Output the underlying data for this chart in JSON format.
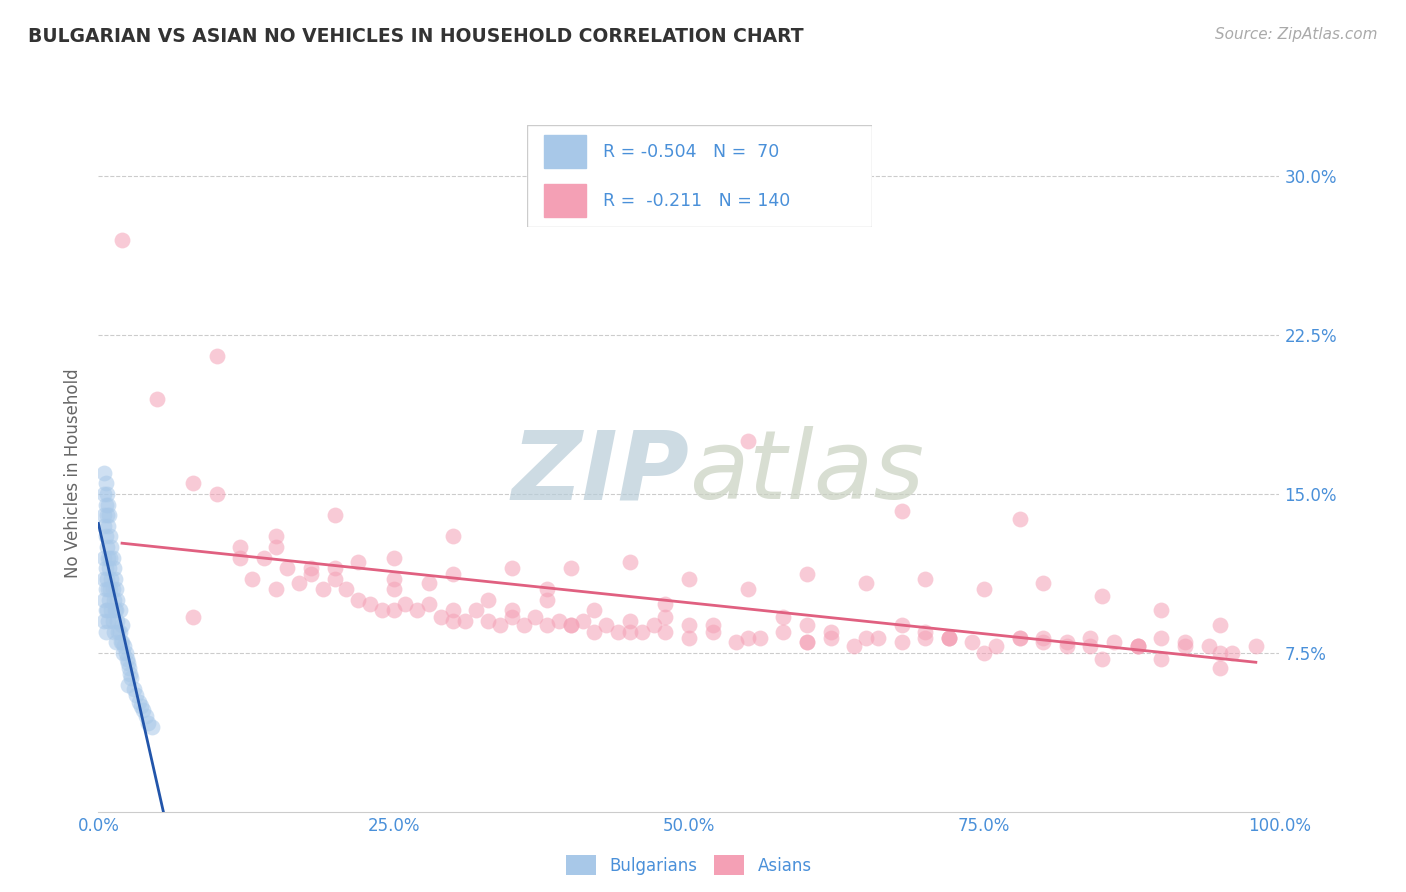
{
  "title": "BULGARIAN VS ASIAN NO VEHICLES IN HOUSEHOLD CORRELATION CHART",
  "source": "Source: ZipAtlas.com",
  "ylabel": "No Vehicles in Household",
  "xlim": [
    0,
    1.0
  ],
  "ylim": [
    0,
    0.32
  ],
  "xticks": [
    0.0,
    0.25,
    0.5,
    0.75,
    1.0
  ],
  "xticklabels": [
    "0.0%",
    "25.0%",
    "50.0%",
    "75.0%",
    "100.0%"
  ],
  "yticks": [
    0.0,
    0.075,
    0.15,
    0.225,
    0.3
  ],
  "yticklabels_right": [
    "",
    "7.5%",
    "15.0%",
    "22.5%",
    "30.0%"
  ],
  "color_bulgarian": "#a8c8e8",
  "color_asian": "#f4a0b5",
  "color_title": "#333333",
  "color_source": "#999999",
  "color_axis_label": "#666666",
  "color_tick_blue": "#4a90d9",
  "color_grid": "#cccccc",
  "watermark_zip": "ZIP",
  "watermark_atlas": "atlas",
  "watermark_color": "#d0dce8",
  "scatter_alpha": 0.55,
  "scatter_size": 130,
  "bulg_line_color": "#2255aa",
  "asian_line_color": "#e06080",
  "bulgarian_scatter_x": [
    0.005,
    0.005,
    0.005,
    0.005,
    0.005,
    0.006,
    0.006,
    0.006,
    0.006,
    0.006,
    0.007,
    0.007,
    0.007,
    0.008,
    0.008,
    0.008,
    0.009,
    0.009,
    0.01,
    0.01,
    0.011,
    0.011,
    0.012,
    0.012,
    0.013,
    0.013,
    0.014,
    0.015,
    0.015,
    0.016,
    0.017,
    0.018,
    0.019,
    0.02,
    0.021,
    0.022,
    0.023,
    0.024,
    0.025,
    0.026,
    0.027,
    0.028,
    0.03,
    0.032,
    0.034,
    0.036,
    0.038,
    0.04,
    0.042,
    0.045,
    0.005,
    0.005,
    0.005,
    0.006,
    0.006,
    0.007,
    0.007,
    0.008,
    0.008,
    0.009,
    0.01,
    0.011,
    0.012,
    0.013,
    0.014,
    0.015,
    0.016,
    0.018,
    0.02,
    0.025
  ],
  "bulgarian_scatter_y": [
    0.135,
    0.12,
    0.11,
    0.1,
    0.09,
    0.13,
    0.115,
    0.105,
    0.095,
    0.085,
    0.125,
    0.11,
    0.095,
    0.12,
    0.105,
    0.09,
    0.115,
    0.1,
    0.12,
    0.105,
    0.11,
    0.095,
    0.105,
    0.09,
    0.1,
    0.085,
    0.095,
    0.095,
    0.08,
    0.09,
    0.085,
    0.085,
    0.08,
    0.08,
    0.075,
    0.078,
    0.075,
    0.072,
    0.07,
    0.068,
    0.065,
    0.063,
    0.058,
    0.055,
    0.052,
    0.05,
    0.048,
    0.045,
    0.042,
    0.04,
    0.16,
    0.15,
    0.14,
    0.155,
    0.145,
    0.15,
    0.14,
    0.145,
    0.135,
    0.14,
    0.13,
    0.125,
    0.12,
    0.115,
    0.11,
    0.105,
    0.1,
    0.095,
    0.088,
    0.06
  ],
  "asian_scatter_x": [
    0.02,
    0.05,
    0.08,
    0.1,
    0.12,
    0.13,
    0.14,
    0.15,
    0.16,
    0.17,
    0.18,
    0.19,
    0.2,
    0.21,
    0.22,
    0.23,
    0.24,
    0.25,
    0.26,
    0.27,
    0.28,
    0.29,
    0.3,
    0.31,
    0.32,
    0.33,
    0.34,
    0.35,
    0.36,
    0.37,
    0.38,
    0.39,
    0.4,
    0.41,
    0.42,
    0.43,
    0.44,
    0.45,
    0.46,
    0.47,
    0.48,
    0.5,
    0.52,
    0.54,
    0.56,
    0.58,
    0.6,
    0.62,
    0.64,
    0.66,
    0.68,
    0.7,
    0.72,
    0.74,
    0.76,
    0.78,
    0.8,
    0.82,
    0.84,
    0.86,
    0.88,
    0.9,
    0.92,
    0.94,
    0.96,
    0.98,
    0.1,
    0.15,
    0.2,
    0.25,
    0.3,
    0.35,
    0.4,
    0.45,
    0.5,
    0.55,
    0.6,
    0.65,
    0.7,
    0.75,
    0.8,
    0.85,
    0.9,
    0.95,
    0.12,
    0.18,
    0.25,
    0.33,
    0.42,
    0.52,
    0.62,
    0.72,
    0.82,
    0.92,
    0.15,
    0.22,
    0.3,
    0.38,
    0.48,
    0.58,
    0.68,
    0.78,
    0.88,
    0.2,
    0.28,
    0.38,
    0.48,
    0.6,
    0.72,
    0.84,
    0.35,
    0.5,
    0.65,
    0.8,
    0.95,
    0.25,
    0.4,
    0.55,
    0.7,
    0.85,
    0.3,
    0.45,
    0.6,
    0.75,
    0.9,
    0.08,
    0.55,
    0.68,
    0.78,
    0.88,
    0.95
  ],
  "asian_scatter_y": [
    0.27,
    0.195,
    0.155,
    0.215,
    0.125,
    0.11,
    0.12,
    0.105,
    0.115,
    0.108,
    0.112,
    0.105,
    0.11,
    0.105,
    0.1,
    0.098,
    0.095,
    0.105,
    0.098,
    0.095,
    0.098,
    0.092,
    0.095,
    0.09,
    0.095,
    0.09,
    0.088,
    0.092,
    0.088,
    0.092,
    0.088,
    0.09,
    0.088,
    0.09,
    0.085,
    0.088,
    0.085,
    0.09,
    0.085,
    0.088,
    0.085,
    0.082,
    0.085,
    0.08,
    0.082,
    0.085,
    0.08,
    0.082,
    0.078,
    0.082,
    0.08,
    0.085,
    0.082,
    0.08,
    0.078,
    0.082,
    0.08,
    0.078,
    0.082,
    0.08,
    0.078,
    0.082,
    0.08,
    0.078,
    0.075,
    0.078,
    0.15,
    0.13,
    0.14,
    0.12,
    0.13,
    0.115,
    0.115,
    0.118,
    0.11,
    0.105,
    0.112,
    0.108,
    0.11,
    0.105,
    0.108,
    0.102,
    0.095,
    0.088,
    0.12,
    0.115,
    0.11,
    0.1,
    0.095,
    0.088,
    0.085,
    0.082,
    0.08,
    0.078,
    0.125,
    0.118,
    0.112,
    0.105,
    0.098,
    0.092,
    0.088,
    0.082,
    0.078,
    0.115,
    0.108,
    0.1,
    0.092,
    0.088,
    0.082,
    0.078,
    0.095,
    0.088,
    0.082,
    0.082,
    0.075,
    0.095,
    0.088,
    0.082,
    0.082,
    0.072,
    0.09,
    0.085,
    0.08,
    0.075,
    0.072,
    0.092,
    0.175,
    0.142,
    0.138,
    0.078,
    0.068
  ]
}
